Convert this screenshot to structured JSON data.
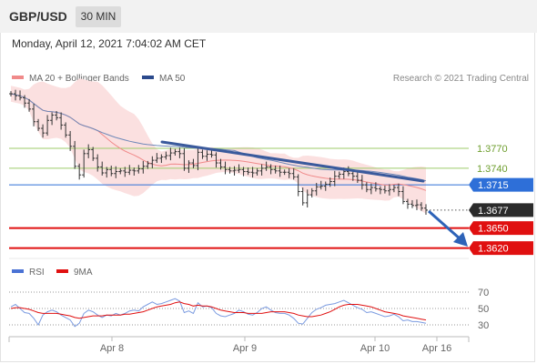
{
  "header": {
    "symbol": "GBP/USD",
    "timeframe": "30 MIN"
  },
  "timestamp": "Monday, April 12, 2021 7:04:02 AM CET",
  "legend": {
    "items": [
      {
        "label": "MA 20 + Bollinger Bands",
        "color": "#f08a8a"
      },
      {
        "label": "MA 50",
        "color": "#2b4a8c"
      }
    ],
    "credit": "Research © 2021 Trading Central"
  },
  "rsi_legend": {
    "items": [
      {
        "label": "RSI",
        "color": "#4a72d4"
      },
      {
        "label": "9MA",
        "color": "#e01010"
      }
    ]
  },
  "colors": {
    "resistance": "#9ecb6a",
    "pivot": "#2e6fd8",
    "support": "#e01010",
    "price_tag": "#2b2b2b",
    "trendline": "#3a5a9c",
    "bollinger_fill": "#fbe0e0"
  },
  "chart_data": [
    {
      "type": "line",
      "title": "",
      "series": [
        {
          "name": "",
          "values": [
            1.3852,
            1.3849,
            1.3846,
            1.3838,
            1.3829,
            1.381,
            1.38,
            1.3793,
            1.3812,
            1.382,
            1.3816,
            1.3805,
            1.379,
            1.3773,
            1.3743,
            1.373,
            1.3762,
            1.3768,
            1.3755,
            1.3742,
            1.3733,
            1.3738,
            1.3732,
            1.3735,
            1.3736,
            1.3734,
            1.3737,
            1.3736,
            1.3739,
            1.3743,
            1.3747,
            1.3752,
            1.3755,
            1.3757,
            1.3759,
            1.3763,
            1.3765,
            1.3762,
            1.374,
            1.3748,
            1.3744,
            1.3764,
            1.3758,
            1.3761,
            1.376,
            1.3748,
            1.3742,
            1.3738,
            1.3736,
            1.3737,
            1.3738,
            1.3735,
            1.3734,
            1.3733,
            1.3736,
            1.374,
            1.3742,
            1.3738,
            1.3736,
            1.3734,
            1.3734,
            1.3732,
            1.3727,
            1.3705,
            1.3688,
            1.37,
            1.3706,
            1.3712,
            1.3713,
            1.3716,
            1.372,
            1.3728,
            1.3731,
            1.3735,
            1.3732,
            1.3728,
            1.3722,
            1.3715,
            1.3708,
            1.3711,
            1.3709,
            1.3708,
            1.3706,
            1.3708,
            1.3711,
            1.3705,
            1.369,
            1.3686,
            1.3684,
            1.3685,
            1.368,
            1.3677
          ]
        }
      ],
      "horizontal_levels": [
        {
          "label": "1.3770",
          "value": 1.377,
          "kind": "resistance"
        },
        {
          "label": "1.3740",
          "value": 1.374,
          "kind": "resistance"
        },
        {
          "label": "1.3715",
          "value": 1.3715,
          "kind": "pivot"
        },
        {
          "label": "1.3677",
          "value": 1.3677,
          "kind": "last_price"
        },
        {
          "label": "1.3650",
          "value": 1.365,
          "kind": "support"
        },
        {
          "label": "1.3620",
          "value": 1.362,
          "kind": "support"
        }
      ],
      "ylim": [
        1.3603,
        1.3863
      ],
      "xlabel": "",
      "ylabel": "",
      "grid": false
    },
    {
      "type": "line",
      "title": "",
      "y_ticks": [
        "70",
        "50",
        "30"
      ],
      "x_ticks": [
        "Apr 8",
        "Apr 9",
        "Apr 10",
        "Apr 16"
      ],
      "ylim": [
        20,
        80
      ],
      "series": [
        {
          "name": "RSI",
          "values": [
            52,
            55,
            50,
            45,
            44,
            38,
            30,
            42,
            46,
            48,
            46,
            42,
            39,
            36,
            28,
            32,
            44,
            48,
            46,
            42,
            39,
            42,
            41,
            44,
            42,
            44,
            47,
            48,
            47,
            52,
            55,
            58,
            55,
            56,
            58,
            60,
            62,
            59,
            45,
            47,
            44,
            57,
            52,
            53,
            51,
            44,
            41,
            40,
            42,
            44,
            48,
            46,
            43,
            42,
            45,
            50,
            52,
            48,
            45,
            44,
            44,
            42,
            38,
            32,
            31,
            38,
            45,
            49,
            51,
            54,
            55,
            56,
            58,
            60,
            57,
            54,
            51,
            49,
            45,
            46,
            44,
            42,
            40,
            41,
            43,
            40,
            35,
            36,
            34,
            34,
            33,
            32
          ]
        },
        {
          "name": "9MA",
          "values": [
            50,
            51,
            51,
            50,
            49,
            47,
            45,
            44,
            44,
            44,
            44,
            43,
            42,
            41,
            39,
            38,
            39,
            40,
            41,
            41,
            41,
            42,
            42,
            42,
            42,
            43,
            43,
            44,
            45,
            46,
            48,
            50,
            52,
            53,
            54,
            55,
            57,
            58,
            56,
            55,
            53,
            54,
            53,
            53,
            52,
            50,
            48,
            47,
            46,
            45,
            45,
            45,
            44,
            44,
            44,
            44,
            45,
            46,
            46,
            46,
            46,
            45,
            44,
            42,
            41,
            40,
            40,
            41,
            42,
            44,
            46,
            49,
            52,
            54,
            55,
            55,
            55,
            54,
            53,
            52,
            50,
            48,
            46,
            45,
            44,
            43,
            41,
            40,
            39,
            38,
            37,
            36
          ]
        }
      ],
      "xlabel": "",
      "ylabel": ""
    }
  ]
}
